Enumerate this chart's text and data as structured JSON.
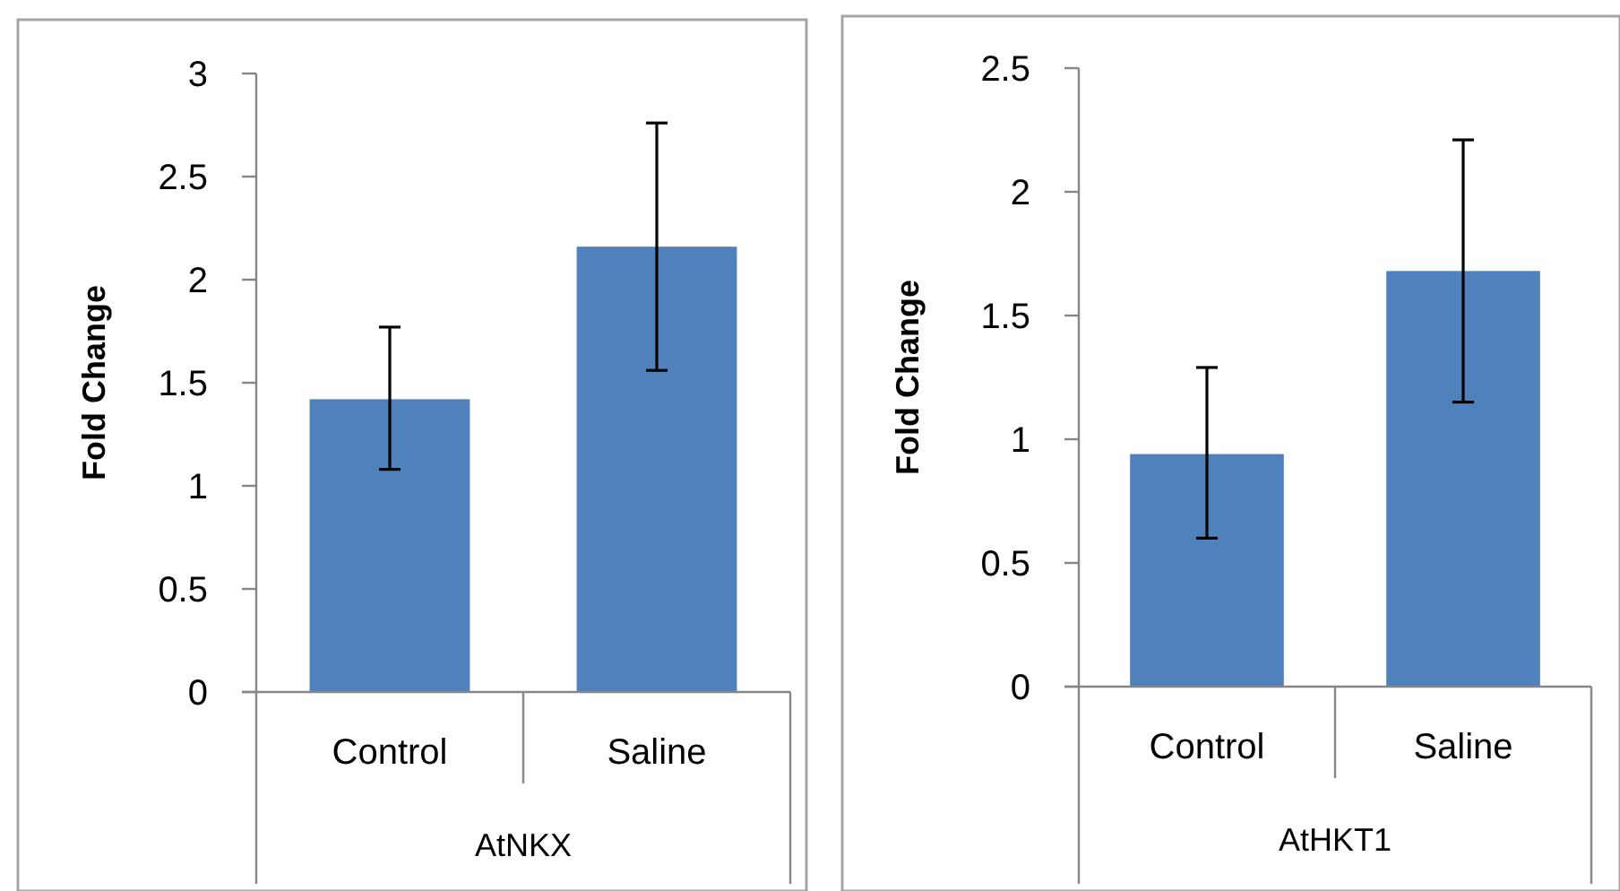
{
  "chart_data": [
    {
      "type": "bar",
      "ylabel": "Fold Change",
      "xlabel": "AtNKX",
      "categories": [
        "Control",
        "Saline"
      ],
      "values": [
        1.42,
        2.16
      ],
      "errors": [
        [
          1.08,
          1.77
        ],
        [
          1.56,
          2.76
        ]
      ],
      "color": "#4f81bd",
      "ylim": [
        0,
        3
      ],
      "yticks": [
        0,
        0.5,
        1,
        1.5,
        2,
        2.5,
        3
      ]
    },
    {
      "type": "bar",
      "ylabel": "Fold Change",
      "xlabel": "AtHKT1",
      "categories": [
        "Control",
        "Saline"
      ],
      "values": [
        0.94,
        1.68
      ],
      "errors": [
        [
          0.6,
          1.29
        ],
        [
          1.15,
          2.21
        ]
      ],
      "color": "#4f81bd",
      "ylim": [
        0,
        2.5
      ],
      "yticks": [
        0,
        0.5,
        1,
        1.5,
        2,
        2.5
      ]
    }
  ]
}
